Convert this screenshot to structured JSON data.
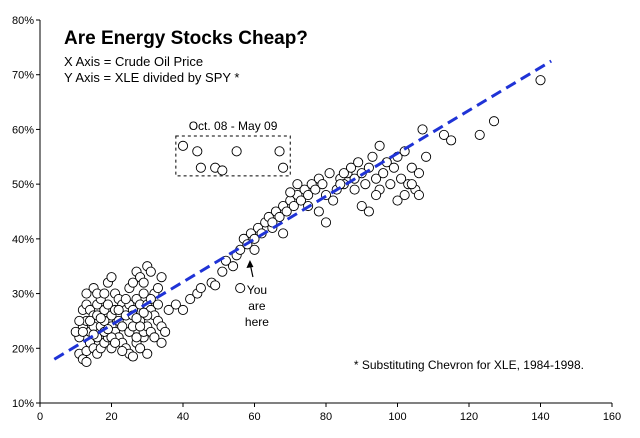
{
  "chart_data": {
    "type": "scatter",
    "title": "Are Energy Stocks Cheap?",
    "subtitle_lines": [
      "X Axis = Crude Oil Price",
      "Y Axis = XLE divided by SPY *"
    ],
    "xlim": [
      0,
      160
    ],
    "ylim": [
      10,
      80
    ],
    "x_ticks": [
      0,
      20,
      40,
      60,
      80,
      100,
      120,
      140,
      160
    ],
    "y_ticks": [
      10,
      20,
      30,
      40,
      50,
      60,
      70,
      80
    ],
    "y_tick_labels": [
      "10%",
      "20%",
      "30%",
      "40%",
      "50%",
      "60%",
      "70%",
      "80%"
    ],
    "grid": false,
    "trendline": {
      "x": [
        4,
        143
      ],
      "y": [
        18,
        72.5
      ],
      "color": "#1f33d6",
      "style": "dashed"
    },
    "annotations": {
      "box_label": "Oct. 08 - May 09",
      "box_range": {
        "x": [
          38,
          70
        ],
        "y": [
          51.5,
          58.8
        ]
      },
      "arrow_lines": [
        "You",
        "are",
        "here"
      ],
      "arrow_point": {
        "x": 59,
        "y": 36.5
      },
      "footnote": "* Substituting Chevron for XLE, 1984-1998."
    },
    "series": [
      {
        "marker": "open-circle",
        "points": [
          [
            11,
            19
          ],
          [
            12,
            18
          ],
          [
            13,
            17.5
          ],
          [
            13,
            19.5
          ],
          [
            14,
            21
          ],
          [
            15,
            20
          ],
          [
            16,
            19
          ],
          [
            17,
            20
          ],
          [
            18,
            21
          ],
          [
            19,
            22
          ],
          [
            11,
            22
          ],
          [
            12,
            24
          ],
          [
            13,
            25
          ],
          [
            14,
            23
          ],
          [
            15,
            24
          ],
          [
            16,
            22
          ],
          [
            17,
            24
          ],
          [
            18,
            23
          ],
          [
            19,
            25
          ],
          [
            20,
            24
          ],
          [
            12,
            27
          ],
          [
            13,
            28
          ],
          [
            14,
            27
          ],
          [
            15,
            26
          ],
          [
            16,
            28
          ],
          [
            17,
            29
          ],
          [
            18,
            27
          ],
          [
            19,
            28
          ],
          [
            20,
            26
          ],
          [
            21,
            27
          ],
          [
            13,
            30
          ],
          [
            15,
            31
          ],
          [
            16,
            30
          ],
          [
            18,
            30
          ],
          [
            19,
            32
          ],
          [
            21,
            30
          ],
          [
            22,
            29
          ],
          [
            20,
            33
          ],
          [
            23,
            28
          ],
          [
            24,
            27
          ],
          [
            21,
            23
          ],
          [
            22,
            22
          ],
          [
            23,
            21
          ],
          [
            24,
            20
          ],
          [
            25,
            19
          ],
          [
            26,
            18.5
          ],
          [
            27,
            21
          ],
          [
            28,
            20
          ],
          [
            29,
            22
          ],
          [
            30,
            19
          ],
          [
            22,
            25
          ],
          [
            23,
            24
          ],
          [
            24,
            26
          ],
          [
            25,
            23
          ],
          [
            26,
            24
          ],
          [
            27,
            22
          ],
          [
            28,
            25
          ],
          [
            29,
            23
          ],
          [
            30,
            24
          ],
          [
            31,
            23
          ],
          [
            25,
            28
          ],
          [
            26,
            27
          ],
          [
            27,
            29
          ],
          [
            28,
            28
          ],
          [
            29,
            30
          ],
          [
            30,
            28
          ],
          [
            31,
            27
          ],
          [
            32,
            26
          ],
          [
            33,
            25
          ],
          [
            34,
            24
          ],
          [
            25,
            31
          ],
          [
            26,
            32
          ],
          [
            27,
            34
          ],
          [
            28,
            33
          ],
          [
            29,
            32
          ],
          [
            30,
            35
          ],
          [
            31,
            34
          ],
          [
            32,
            30
          ],
          [
            33,
            31
          ],
          [
            34,
            33
          ],
          [
            10,
            23
          ],
          [
            11,
            25
          ],
          [
            12,
            23
          ],
          [
            14,
            25
          ],
          [
            16,
            26
          ],
          [
            18,
            25
          ],
          [
            20,
            22
          ],
          [
            22,
            27
          ],
          [
            24,
            29
          ],
          [
            26,
            26
          ],
          [
            28,
            24
          ],
          [
            30,
            26
          ],
          [
            32,
            22
          ],
          [
            34,
            21
          ],
          [
            35,
            23
          ],
          [
            36,
            27
          ],
          [
            38,
            28
          ],
          [
            40,
            27
          ],
          [
            42,
            29
          ],
          [
            44,
            30
          ],
          [
            20,
            20
          ],
          [
            21,
            21
          ],
          [
            23,
            19.5
          ],
          [
            15,
            22.5
          ],
          [
            17,
            25.5
          ],
          [
            19,
            23.5
          ],
          [
            31,
            29
          ],
          [
            33,
            28
          ],
          [
            29,
            26.5
          ],
          [
            27,
            25.5
          ],
          [
            45,
            31
          ],
          [
            48,
            32
          ],
          [
            49,
            31.5
          ],
          [
            51,
            34
          ],
          [
            52,
            36
          ],
          [
            54,
            35
          ],
          [
            55,
            37
          ],
          [
            56,
            38
          ],
          [
            57,
            40
          ],
          [
            58,
            39
          ],
          [
            59,
            41
          ],
          [
            60,
            40
          ],
          [
            61,
            42
          ],
          [
            62,
            41
          ],
          [
            63,
            43
          ],
          [
            64,
            44
          ],
          [
            65,
            42
          ],
          [
            66,
            45
          ],
          [
            67,
            44
          ],
          [
            68,
            46
          ],
          [
            69,
            45
          ],
          [
            70,
            47
          ],
          [
            71,
            46
          ],
          [
            72,
            48
          ],
          [
            73,
            47
          ],
          [
            74,
            49
          ],
          [
            75,
            48
          ],
          [
            76,
            50
          ],
          [
            77,
            49
          ],
          [
            78,
            51
          ],
          [
            79,
            50
          ],
          [
            80,
            48
          ],
          [
            81,
            52
          ],
          [
            82,
            47
          ],
          [
            83,
            49
          ],
          [
            84,
            51
          ],
          [
            85,
            50
          ],
          [
            86,
            52
          ],
          [
            87,
            53
          ],
          [
            88,
            51
          ],
          [
            89,
            54
          ],
          [
            90,
            52
          ],
          [
            91,
            50
          ],
          [
            92,
            53
          ],
          [
            93,
            55
          ],
          [
            94,
            51
          ],
          [
            95,
            49
          ],
          [
            96,
            52
          ],
          [
            97,
            54
          ],
          [
            98,
            50
          ],
          [
            99,
            53
          ],
          [
            100,
            55
          ],
          [
            101,
            51
          ],
          [
            102,
            56
          ],
          [
            103,
            50
          ],
          [
            104,
            53
          ],
          [
            105,
            49
          ],
          [
            106,
            52
          ],
          [
            107,
            60
          ],
          [
            108,
            55
          ],
          [
            56,
            31
          ],
          [
            60,
            38
          ],
          [
            65,
            43
          ],
          [
            70,
            48.5
          ],
          [
            75,
            46
          ],
          [
            80,
            43
          ],
          [
            85,
            52
          ],
          [
            90,
            46
          ],
          [
            95,
            57
          ],
          [
            100,
            47
          ],
          [
            102,
            48
          ],
          [
            104,
            50
          ],
          [
            106,
            48
          ],
          [
            94,
            48
          ],
          [
            92,
            45
          ],
          [
            88,
            49
          ],
          [
            84,
            50
          ],
          [
            78,
            45
          ],
          [
            72,
            50
          ],
          [
            68,
            41
          ],
          [
            113,
            59
          ],
          [
            115,
            58
          ],
          [
            123,
            59
          ],
          [
            127,
            61.5
          ],
          [
            140,
            69
          ],
          [
            40,
            57
          ],
          [
            44,
            56
          ],
          [
            45,
            53
          ],
          [
            49,
            53
          ],
          [
            51,
            52.5
          ],
          [
            55,
            56
          ],
          [
            67,
            56
          ],
          [
            68,
            53
          ]
        ]
      }
    ]
  }
}
